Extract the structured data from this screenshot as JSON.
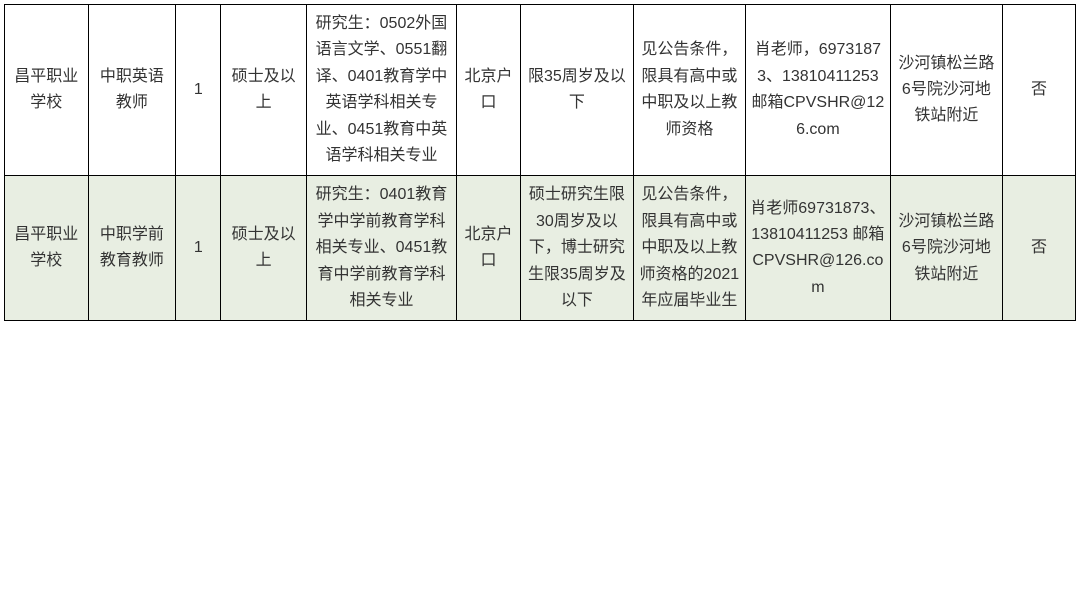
{
  "table": {
    "background_color": "#ffffff",
    "alt_row_color": "#e8eee2",
    "border_color": "#000000",
    "text_color": "#333333",
    "font_size": 16,
    "rows": [
      {
        "alt": false,
        "cells": {
          "c1": "昌平职业学校",
          "c2": "中职英语教师",
          "c3": "1",
          "c4": "硕士及以上",
          "c5": "研究生：0502外国语言文学、0551翻译、0401教育学中英语学科相关专业、0451教育中英语学科相关专业",
          "c6": "北京户口",
          "c7": "限35周岁及以下",
          "c8": "见公告条件，限具有高中或中职及以上教师资格",
          "c9": "肖老师，69731873、13810411253 邮箱CPVSHR@126.com",
          "c10": "沙河镇松兰路6号院沙河地铁站附近",
          "c11": "否"
        }
      },
      {
        "alt": true,
        "cells": {
          "c1": "昌平职业学校",
          "c2": "中职学前教育教师",
          "c3": "1",
          "c4": "硕士及以上",
          "c5": "研究生：0401教育学中学前教育学科相关专业、0451教育中学前教育学科相关专业",
          "c6": "北京户口",
          "c7": "硕士研究生限30周岁及以下，博士研究生限35周岁及以下",
          "c8": "见公告条件，限具有高中或中职及以上教师资格的2021年应届毕业生",
          "c9": "肖老师69731873、13810411253 邮箱CPVSHR@126.com",
          "c10": "沙河镇松兰路6号院沙河地铁站附近",
          "c11": "否"
        }
      }
    ]
  }
}
